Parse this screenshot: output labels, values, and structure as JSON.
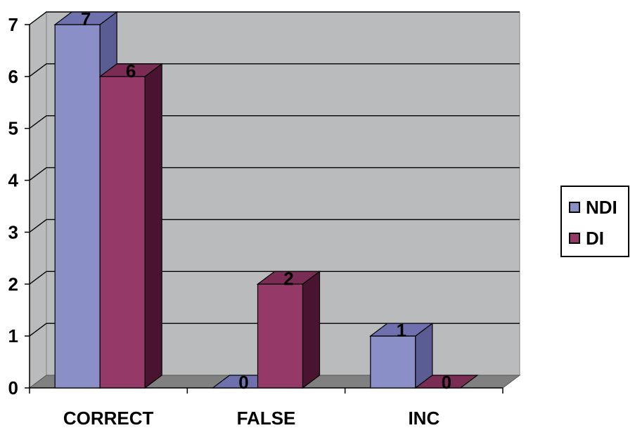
{
  "chart_data": {
    "type": "bar",
    "categories": [
      "CORRECT",
      "FALSE",
      "INC"
    ],
    "series": [
      {
        "name": "NDI",
        "values": [
          7,
          0,
          1
        ],
        "color": "#8b8fc8",
        "side_color": "#5a5c94",
        "top_color": "#6e71ae"
      },
      {
        "name": "DI",
        "values": [
          6,
          2,
          0
        ],
        "color": "#953a68",
        "side_color": "#4a1431",
        "top_color": "#7a2c54"
      }
    ],
    "ylim": [
      0,
      7
    ],
    "yticks": [
      0,
      1,
      2,
      3,
      4,
      5,
      6,
      7
    ],
    "grid": true,
    "legend_position": "right",
    "wall_color": "#b9bbbc",
    "floor_color": "#808080"
  }
}
